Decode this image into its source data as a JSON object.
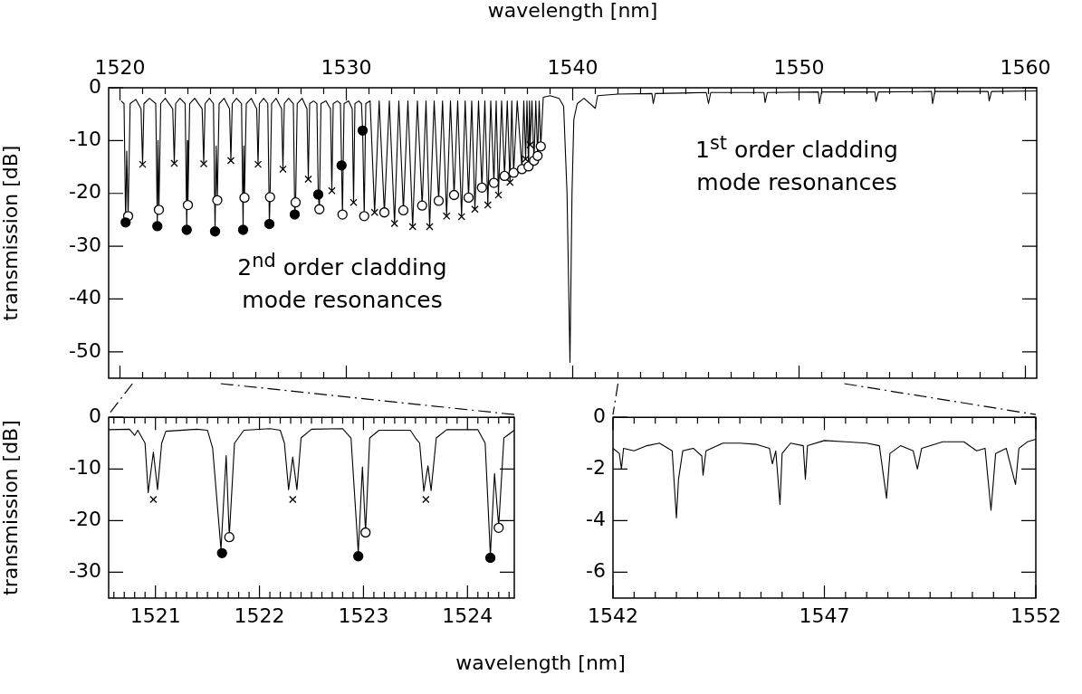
{
  "chart_data": [
    {
      "type": "line",
      "xlabel": "wavelength [nm]",
      "ylabel": "transmission [dB]",
      "xlim": [
        1519.5,
        1560.5
      ],
      "ylim": [
        -55,
        0
      ],
      "xticks": [
        1520,
        {
          "value": 1521,
          "label": null
        },
        {
          "value": 1522,
          "label": null
        },
        {
          "value": 1523,
          "label": null
        },
        {
          "value": 1524,
          "label": null
        },
        {
          "value": 1525,
          "label": null
        },
        {
          "value": 1526,
          "label": null
        },
        {
          "value": 1527,
          "label": null
        },
        {
          "value": 1528,
          "label": null
        },
        {
          "value": 1529,
          "label": null
        },
        1530,
        {
          "value": 1531,
          "label": null
        },
        {
          "value": 1532,
          "label": null
        },
        {
          "value": 1533,
          "label": null
        },
        {
          "value": 1534,
          "label": null
        },
        {
          "value": 1535,
          "label": null
        },
        {
          "value": 1536,
          "label": null
        },
        {
          "value": 1537,
          "label": null
        },
        {
          "value": 1538,
          "label": null
        },
        {
          "value": 1539,
          "label": null
        },
        1540,
        {
          "value": 1541,
          "label": null
        },
        {
          "value": 1542,
          "label": null
        },
        {
          "value": 1543,
          "label": null
        },
        {
          "value": 1544,
          "label": null
        },
        {
          "value": 1545,
          "label": null
        },
        {
          "value": 1546,
          "label": null
        },
        {
          "value": 1547,
          "label": null
        },
        {
          "value": 1548,
          "label": null
        },
        {
          "value": 1549,
          "label": null
        },
        1550,
        {
          "value": 1551,
          "label": null
        },
        {
          "value": 1552,
          "label": null
        },
        {
          "value": 1553,
          "label": null
        },
        {
          "value": 1554,
          "label": null
        },
        {
          "value": 1555,
          "label": null
        },
        {
          "value": 1556,
          "label": null
        },
        {
          "value": 1557,
          "label": null
        },
        {
          "value": 1558,
          "label": null
        },
        {
          "value": 1559,
          "label": null
        },
        1560
      ],
      "yticks": [
        0,
        -10,
        -20,
        -30,
        -40,
        -50
      ],
      "annotations": [
        "2$^{nd}$ order cladding\nmode resonances",
        "1$^{st}$ order cladding\nmode resonances"
      ],
      "series": [
        {
          "type": "line",
          "marker": "none",
          "color": "#000000",
          "x": [
            1520.05,
            1520.18,
            1520.25,
            1520.3,
            1520.36,
            1520.45,
            1520.7,
            1520.93,
            1521,
            1521.06,
            1521.3,
            1521.58,
            1521.65,
            1521.68,
            1521.72,
            1521.8,
            1522,
            1522.33,
            1522.4,
            1522.46,
            1522.65,
            1522.88,
            1522.95,
            1522.98,
            1523,
            1523.08,
            1523.3,
            1523.63,
            1523.7,
            1523.76,
            1523.95,
            1524.13,
            1524.2,
            1524.25,
            1524.3,
            1524.38,
            1524.6,
            1524.84,
            1524.9,
            1524.96,
            1525.15,
            1525.37,
            1525.44,
            1525.47,
            1525.5,
            1525.58,
            1525.8,
            1526.04,
            1526.1,
            1526.16,
            1526.35,
            1526.53,
            1526.6,
            1526.63,
            1526.7,
            1526.9,
            1527.14,
            1527.2,
            1527.26,
            1527.45,
            1527.66,
            1527.72,
            1527.76,
            1527.83,
            1528.05,
            1528.26,
            1528.32,
            1528.38,
            1528.55,
            1528.7,
            1528.76,
            1528.81,
            1528.88,
            1529.1,
            1529.3,
            1529.36,
            1529.42,
            1529.6,
            1529.74,
            1529.79,
            1529.83,
            1529.9,
            1530.1,
            1530.26,
            1530.32,
            1530.38,
            1530.55,
            1530.67,
            1530.72,
            1530.79,
            1530.86,
            1531.05,
            1531.25,
            1531.45,
            1531.68,
            1531.9,
            1532.13,
            1532.32,
            1532.52,
            1532.72,
            1532.93,
            1533.14,
            1533.35,
            1533.52,
            1533.68,
            1533.88,
            1534.08,
            1534.25,
            1534.43,
            1534.6,
            1534.76,
            1534.92,
            1535.09,
            1535.25,
            1535.4,
            1535.54,
            1535.68,
            1535.84,
            1535.99,
            1536.12,
            1536.25,
            1536.38,
            1536.52,
            1536.62,
            1536.72,
            1536.86,
            1536.99,
            1537.11,
            1537.23,
            1537.31,
            1537.39,
            1537.55,
            1537.76,
            1537.84,
            1537.92,
            1537.98,
            1538.05,
            1538.09,
            1538.12,
            1538.2,
            1538.29,
            1538.37,
            1538.45,
            1538.52,
            1538.59,
            1538.7,
            1539,
            1539.4,
            1539.6,
            1539.75,
            1539.88,
            1539.97,
            1540.05,
            1540.2,
            1540.5,
            1541,
            1541.1,
            1542,
            1543.5,
            1543.56,
            1543.65,
            1545.9,
            1546,
            1546.1,
            1548.45,
            1548.5,
            1548.6,
            1550.85,
            1550.9,
            1551,
            1553.35,
            1553.4,
            1553.5,
            1555.85,
            1555.9,
            1556,
            1558.35,
            1558.4,
            1558.5,
            1560.5
          ],
          "values": [
            -2.5,
            -3,
            -25.5,
            -12,
            -24.3,
            -3,
            -2.2,
            -4,
            -14.5,
            -3,
            -2,
            -3,
            -26.2,
            -10,
            -23.1,
            -3,
            -2,
            -4,
            -14.3,
            -3,
            -2,
            -3,
            -26.9,
            -10,
            -22.2,
            -3,
            -2,
            -4,
            -14.4,
            -3,
            -2,
            -3,
            -27.2,
            -11,
            -21.3,
            -3,
            -2,
            -4,
            -13.8,
            -3,
            -2,
            -3,
            -26.9,
            -11,
            -20.8,
            -3,
            -2,
            -4,
            -14.5,
            -3,
            -2,
            -3,
            -25.8,
            -20.7,
            -3,
            -2,
            -4,
            -15.4,
            -3,
            -2,
            -3,
            -24,
            -21.7,
            -3,
            -2,
            -4,
            -17.3,
            -3,
            -2.5,
            -3,
            -20.2,
            -23,
            -3,
            -2.5,
            -4,
            -19.5,
            -3,
            -2.5,
            -3,
            -14.7,
            -24,
            -3,
            -2.5,
            -4,
            -21.7,
            -3,
            -2.5,
            -3,
            -8.1,
            -24.3,
            -3,
            -2.5,
            -23.6,
            -2.5,
            -23.6,
            -2.5,
            -25.7,
            -2.5,
            -23.2,
            -2.5,
            -26.3,
            -2.5,
            -22.3,
            -2.5,
            -26.3,
            -2.5,
            -21.4,
            -2.5,
            -24.3,
            -2.5,
            -20.3,
            -2.5,
            -24.4,
            -2.5,
            -20.8,
            -2.5,
            -23,
            -2.5,
            -18.9,
            -2.5,
            -22.2,
            -2.5,
            -18,
            -2.5,
            -20.3,
            -2.5,
            -16.7,
            -2.5,
            -17.9,
            -2.5,
            -16.1,
            -2.5,
            -15.4,
            -2.5,
            -13.5,
            -2.5,
            -14.9,
            -2.5,
            -10.8,
            -2.5,
            -13.8,
            -2.5,
            -12.9,
            -2.5,
            -11.1,
            -1.8,
            -1.5,
            -2,
            -3.5,
            -20,
            -52,
            -20,
            -6,
            -3,
            -2,
            -3.9,
            -1.5,
            -1.2,
            -1.1,
            -3,
            -1.1,
            -0.9,
            -3,
            -0.9,
            -0.9,
            -2.8,
            -0.9,
            -0.8,
            -3,
            -0.8,
            -0.8,
            -2.6,
            -0.8,
            -0.7,
            -3,
            -0.7,
            -0.7,
            -2.5,
            -0.7,
            -0.6
          ]
        },
        {
          "type": "scatter",
          "marker": "circle",
          "color": "#000000",
          "x": [
            1520.25,
            1521.65,
            1522.95,
            1524.2,
            1525.44,
            1526.6,
            1527.72,
            1528.76,
            1529.79,
            1530.72
          ],
          "values": [
            -25.5,
            -26.2,
            -26.9,
            -27.2,
            -26.9,
            -25.8,
            -24,
            -20.2,
            -14.7,
            -8.1
          ]
        },
        {
          "type": "scatter",
          "marker": "circle",
          "color": "#ffffff",
          "x": [
            1520.36,
            1521.72,
            1523,
            1524.3,
            1525.5,
            1526.63,
            1527.76,
            1528.81,
            1529.83,
            1530.79,
            1531.68,
            1532.52,
            1533.35,
            1534.08,
            1534.76,
            1535.4,
            1535.99,
            1536.52,
            1536.99,
            1537.39,
            1537.76,
            1538.05,
            1538.29,
            1538.45,
            1538.59
          ],
          "values": [
            -24.3,
            -23.1,
            -22.2,
            -21.3,
            -20.8,
            -20.7,
            -21.7,
            -23,
            -24,
            -24.3,
            -23.6,
            -23.2,
            -22.3,
            -21.4,
            -20.3,
            -20.8,
            -18.9,
            -18,
            -16.7,
            -16.1,
            -15.4,
            -14.9,
            -13.8,
            -12.9,
            -11.1
          ]
        },
        {
          "type": "scatter",
          "marker": "cross",
          "color": "#000000",
          "x": [
            1521,
            1522.4,
            1523.7,
            1524.9,
            1526.1,
            1527.2,
            1528.32,
            1529.36,
            1530.32,
            1531.25,
            1532.13,
            1532.93,
            1533.68,
            1534.43,
            1535.09,
            1535.68,
            1536.25,
            1536.72,
            1537.23,
            1537.92,
            1538.12
          ],
          "values": [
            -14.5,
            -14.3,
            -14.4,
            -13.8,
            -14.5,
            -15.4,
            -17.3,
            -19.5,
            -21.7,
            -23.6,
            -25.7,
            -26.3,
            -26.3,
            -24.3,
            -24.4,
            -23,
            -22.2,
            -20.3,
            -17.9,
            -13.5,
            -10.8
          ]
        }
      ]
    },
    {
      "type": "line",
      "xlabel": "wavelength [nm]",
      "ylabel": "transmission [dB]",
      "xlim": [
        1520.55,
        1524.45
      ],
      "ylim": [
        -35,
        0
      ],
      "xticks": [
        {
          "value": 1520.6,
          "label": null
        },
        {
          "value": 1520.7,
          "label": null
        },
        {
          "value": 1520.8,
          "label": null
        },
        {
          "value": 1520.9,
          "label": null
        },
        1521,
        {
          "value": 1521.1,
          "label": null
        },
        {
          "value": 1521.2,
          "label": null
        },
        {
          "value": 1521.3,
          "label": null
        },
        {
          "value": 1521.4,
          "label": null
        },
        {
          "value": 1521.5,
          "label": null
        },
        {
          "value": 1521.6,
          "label": null
        },
        {
          "value": 1521.7,
          "label": null
        },
        {
          "value": 1521.8,
          "label": null
        },
        {
          "value": 1521.9,
          "label": null
        },
        1522,
        {
          "value": 1522.1,
          "label": null
        },
        {
          "value": 1522.2,
          "label": null
        },
        {
          "value": 1522.3,
          "label": null
        },
        {
          "value": 1522.4,
          "label": null
        },
        {
          "value": 1522.5,
          "label": null
        },
        {
          "value": 1522.6,
          "label": null
        },
        {
          "value": 1522.7,
          "label": null
        },
        {
          "value": 1522.8,
          "label": null
        },
        {
          "value": 1522.9,
          "label": null
        },
        1523,
        {
          "value": 1523.1,
          "label": null
        },
        {
          "value": 1523.2,
          "label": null
        },
        {
          "value": 1523.3,
          "label": null
        },
        {
          "value": 1523.4,
          "label": null
        },
        {
          "value": 1523.5,
          "label": null
        },
        {
          "value": 1523.6,
          "label": null
        },
        {
          "value": 1523.7,
          "label": null
        },
        {
          "value": 1523.8,
          "label": null
        },
        {
          "value": 1523.9,
          "label": null
        },
        1524,
        {
          "value": 1524.1,
          "label": null
        },
        {
          "value": 1524.2,
          "label": null
        },
        {
          "value": 1524.3,
          "label": null
        },
        {
          "value": 1524.4,
          "label": null
        }
      ],
      "yticks": [
        0,
        -10,
        -20,
        -30
      ],
      "series": [
        {
          "type": "line",
          "marker": "none",
          "color": "#000000",
          "x": [
            1520.55,
            1520.75,
            1520.8,
            1520.83,
            1520.9,
            1520.93,
            1520.98,
            1521.02,
            1521.06,
            1521.1,
            1521.4,
            1521.5,
            1521.55,
            1521.63,
            1521.68,
            1521.7,
            1521.71,
            1521.76,
            1521.85,
            1522.1,
            1522.2,
            1522.24,
            1522.28,
            1522.32,
            1522.36,
            1522.4,
            1522.5,
            1522.8,
            1522.88,
            1522.95,
            1522.99,
            1523.02,
            1523.06,
            1523.15,
            1523.45,
            1523.5,
            1523.54,
            1523.58,
            1523.62,
            1523.65,
            1523.7,
            1523.8,
            1524.1,
            1524.17,
            1524.22,
            1524.26,
            1524.3,
            1524.35,
            1524.45
          ],
          "values": [
            -2.4,
            -2.3,
            -3.5,
            -2.5,
            -5,
            -14.6,
            -6.7,
            -14,
            -5,
            -2.7,
            -2.3,
            -2.5,
            -6,
            -25.6,
            -7.4,
            -18,
            -23,
            -5,
            -2.5,
            -2.2,
            -2.5,
            -5,
            -14,
            -7.7,
            -14,
            -4,
            -2.3,
            -2.2,
            -4,
            -26.2,
            -9.6,
            -22.2,
            -4,
            -2.5,
            -2.5,
            -4,
            -5,
            -14.3,
            -9.4,
            -14.2,
            -4,
            -2.4,
            -2.4,
            -5,
            -26.7,
            -10.9,
            -21.1,
            -4,
            -2.5
          ]
        },
        {
          "type": "scatter",
          "marker": "circle",
          "color": "#000000",
          "x": [
            1521.64,
            1522.95,
            1524.22
          ],
          "values": [
            -26.3,
            -26.9,
            -27.2
          ]
        },
        {
          "type": "scatter",
          "marker": "circle",
          "color": "#ffffff",
          "x": [
            1521.71,
            1523.02,
            1524.3
          ],
          "values": [
            -23.2,
            -22.3,
            -21.4
          ]
        },
        {
          "type": "scatter",
          "marker": "cross",
          "color": "#000000",
          "x": [
            1520.98,
            1522.32,
            1523.6
          ],
          "values": [
            -15.9,
            -15.9,
            -15.9
          ]
        }
      ]
    },
    {
      "type": "line",
      "xlim": [
        1542,
        1552
      ],
      "ylim": [
        -7,
        0
      ],
      "xticks": [
        1542,
        {
          "value": 1542.5,
          "label": null
        },
        {
          "value": 1543,
          "label": null
        },
        {
          "value": 1543.5,
          "label": null
        },
        {
          "value": 1544,
          "label": null
        },
        {
          "value": 1544.5,
          "label": null
        },
        {
          "value": 1545,
          "label": null
        },
        {
          "value": 1545.5,
          "label": null
        },
        {
          "value": 1546,
          "label": null
        },
        {
          "value": 1546.5,
          "label": null
        },
        1547,
        {
          "value": 1547.5,
          "label": null
        },
        {
          "value": 1548,
          "label": null
        },
        {
          "value": 1548.5,
          "label": null
        },
        {
          "value": 1549,
          "label": null
        },
        {
          "value": 1549.5,
          "label": null
        },
        {
          "value": 1550,
          "label": null
        },
        {
          "value": 1550.5,
          "label": null
        },
        {
          "value": 1551,
          "label": null
        },
        {
          "value": 1551.5,
          "label": null
        },
        1552
      ],
      "yticks": [
        0,
        -2,
        -4,
        -6
      ],
      "series": [
        {
          "type": "line",
          "marker": "none",
          "color": "#000000",
          "x": [
            1542,
            1542.15,
            1542.2,
            1542.25,
            1542.5,
            1542.8,
            1543.1,
            1543.4,
            1543.5,
            1543.55,
            1543.65,
            1543.9,
            1544.1,
            1544.13,
            1544.2,
            1544.6,
            1545,
            1545.4,
            1545.7,
            1545.77,
            1545.85,
            1545.95,
            1546,
            1546.2,
            1546.5,
            1546.55,
            1546.6,
            1547,
            1547.5,
            1548,
            1548.3,
            1548.47,
            1548.55,
            1548.8,
            1549.1,
            1549.2,
            1549.3,
            1549.8,
            1550.3,
            1550.6,
            1550.8,
            1550.94,
            1551.05,
            1551.3,
            1551.52,
            1551.6,
            1551.8,
            1552
          ],
          "values": [
            -1.2,
            -1.4,
            -2,
            -1.2,
            -1.3,
            -1.1,
            -1,
            -1.3,
            -3.9,
            -2.4,
            -1.3,
            -1.2,
            -1.5,
            -2.24,
            -1.3,
            -1,
            -1,
            -1.05,
            -1.2,
            -1.8,
            -1.3,
            -3.37,
            -1.4,
            -1,
            -1.1,
            -2.4,
            -1.1,
            -0.9,
            -0.95,
            -1,
            -1.1,
            -3.14,
            -1.4,
            -1.1,
            -1.3,
            -2,
            -1.2,
            -0.95,
            -0.95,
            -1.3,
            -1.2,
            -3.6,
            -1.4,
            -1.2,
            -2.6,
            -1.2,
            -0.95,
            -0.85
          ]
        }
      ]
    }
  ]
}
